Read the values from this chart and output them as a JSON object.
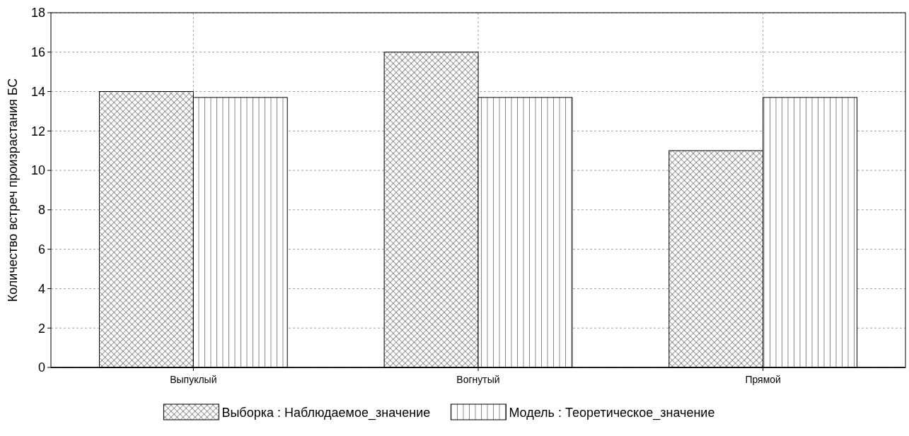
{
  "chart_data": {
    "type": "bar",
    "ylabel": "Количество встреч произрастания БС",
    "categories": [
      "Выпуклый",
      "Вогнутый",
      "Прямой"
    ],
    "series": [
      {
        "name": "Выборка : Наблюдаемое_значение",
        "color": "#000000",
        "values": [
          14,
          16,
          11
        ]
      },
      {
        "name": "Модель : Теоретическое_значение",
        "color": "#000000",
        "values": [
          13.7,
          13.7,
          13.7
        ]
      }
    ],
    "ylim": [
      0,
      18
    ],
    "yticks": [
      0,
      2,
      4,
      6,
      8,
      10,
      12,
      14,
      16,
      18
    ],
    "grid": true,
    "legend": "bottom"
  }
}
